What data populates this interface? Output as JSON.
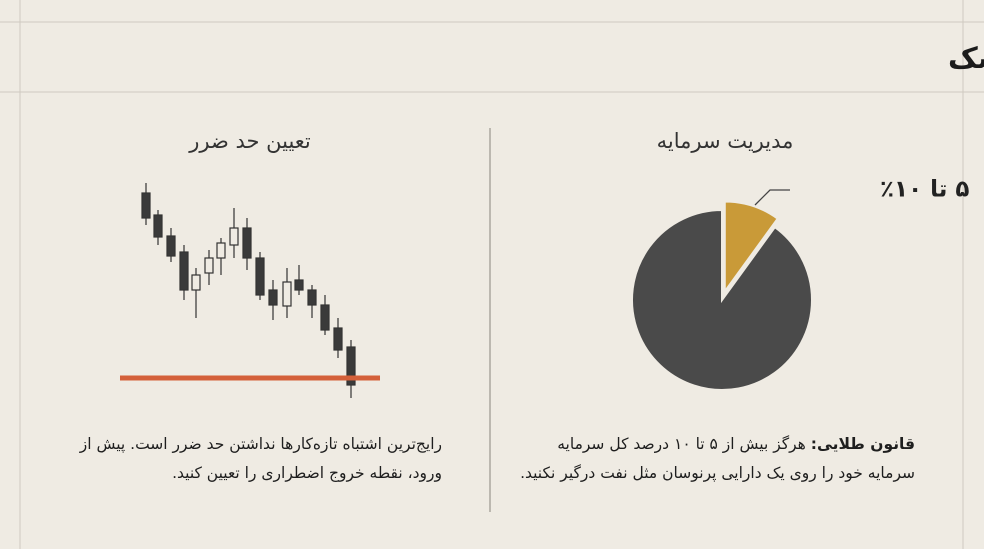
{
  "header": {
    "title": "الفبای بقا: مدیریت سرمایه و ریسک"
  },
  "left_panel": {
    "title": "تعیین حد ضرر",
    "text": "رایج‌ترین اشتباه تازه‌کارها نداشتن حد ضرر است. پیش از ورود، نقطه خروج اضطراری را تعیین کنید."
  },
  "right_panel": {
    "title": "مدیریت سرمایه",
    "pie": {
      "values": [
        10,
        90
      ],
      "colors": [
        "#c99a38",
        "#4a4a4a"
      ],
      "label": "۵ تا ۱۰٪"
    },
    "rule_label": "قانون طلایی:",
    "rule_text": "هرگز بیش از ۵ تا ۱۰ درصد کل سرمایه سرمایه خود را روی یک دارایی پرنوسان مثل نفت درگیر نکنید."
  }
}
